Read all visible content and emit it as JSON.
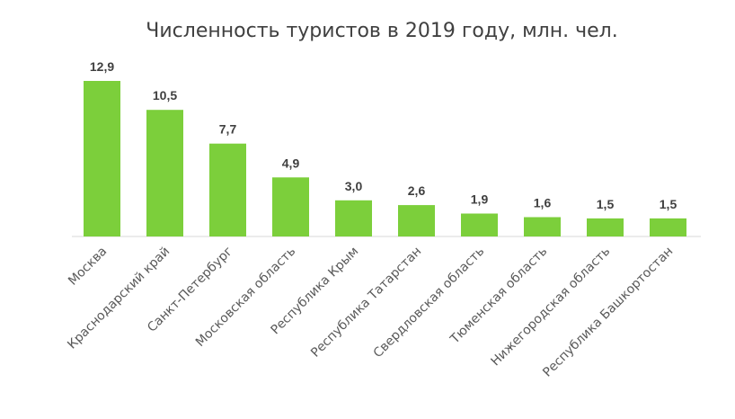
{
  "chart_data": {
    "type": "bar",
    "title": "Численность туристов в 2019 году, млн. чел.",
    "categories": [
      "Москва",
      "Краснодарский край",
      "Санкт-Петербург",
      "Московская область",
      "Республика Крым",
      "Республика Татарстан",
      "Свердловская область",
      "Тюменская область",
      "Нижегородская область",
      "Республика Башкортостан"
    ],
    "values": [
      12.9,
      10.5,
      7.7,
      4.9,
      3.0,
      2.6,
      1.9,
      1.6,
      1.5,
      1.5
    ],
    "data_labels": [
      "12,9",
      "10,5",
      "7,7",
      "4,9",
      "3,0",
      "2,6",
      "1,9",
      "1,6",
      "1,5",
      "1,5"
    ],
    "ylim": [
      0,
      12.9
    ],
    "grid": false,
    "legend": "none",
    "bar_color": "#7ccf3b"
  }
}
